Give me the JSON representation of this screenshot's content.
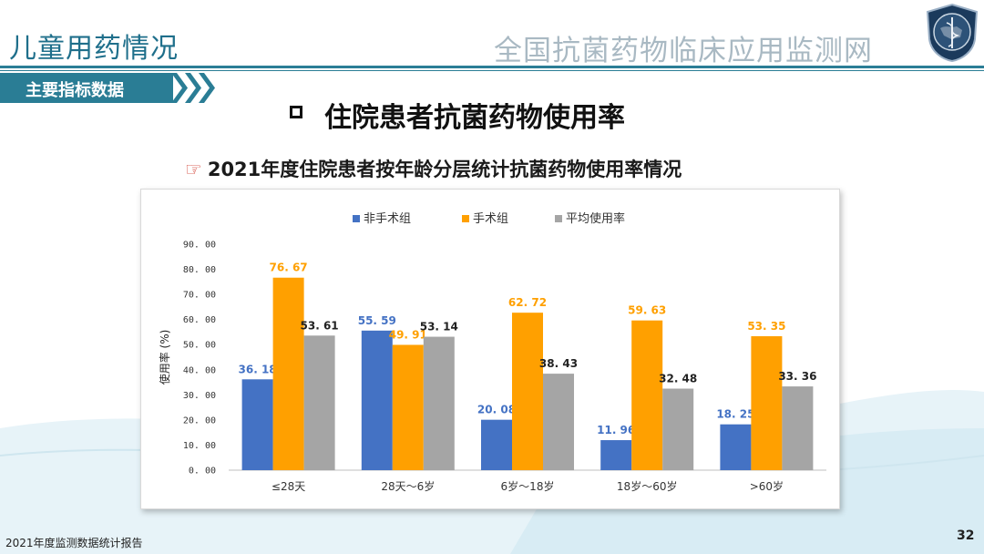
{
  "header": {
    "left_title": "儿童用药情况",
    "right_title": "全国抗菌药物临床应用监测网"
  },
  "section_tab": {
    "label": "主要指标数据"
  },
  "section_title": "住院患者抗菌药物使用率",
  "sub_title": "2021年度住院患者按年龄分层统计抗菌药物使用率情况",
  "footer": {
    "report_name": "2021年度监测数据统计报告",
    "page_number": "32"
  },
  "colors": {
    "series1": "#4472c4",
    "series2": "#ffa000",
    "series3": "#a5a5a5",
    "accent": "#2a7d95"
  },
  "chart_data": {
    "type": "bar",
    "categories": [
      "≤28天",
      "28天～6岁",
      "6岁～18岁",
      "18岁～60岁",
      ">60岁"
    ],
    "series": [
      {
        "name": "非手术组",
        "values": [
          36.18,
          55.59,
          20.08,
          11.96,
          18.25
        ]
      },
      {
        "name": "手术组",
        "values": [
          76.67,
          49.91,
          62.72,
          59.63,
          53.35
        ]
      },
      {
        "name": "平均使用率",
        "values": [
          53.61,
          53.14,
          38.43,
          32.48,
          33.36
        ]
      }
    ],
    "value_labels": [
      [
        "36. 18",
        "55. 59",
        "20. 08",
        "11. 96",
        "18. 25"
      ],
      [
        "76. 67",
        "49. 91",
        "62. 72",
        "59. 63",
        "53. 35"
      ],
      [
        "53. 61",
        "53. 14",
        "38. 43",
        "32. 48",
        "33. 36"
      ]
    ],
    "ylabel": "使用率 (%)",
    "ylim": [
      0,
      90
    ],
    "yticks": [
      "0. 00",
      "10. 00",
      "20. 00",
      "30. 00",
      "40. 00",
      "50. 00",
      "60. 00",
      "70. 00",
      "80. 00",
      "90. 00"
    ],
    "grid": false,
    "legend_position": "top"
  }
}
